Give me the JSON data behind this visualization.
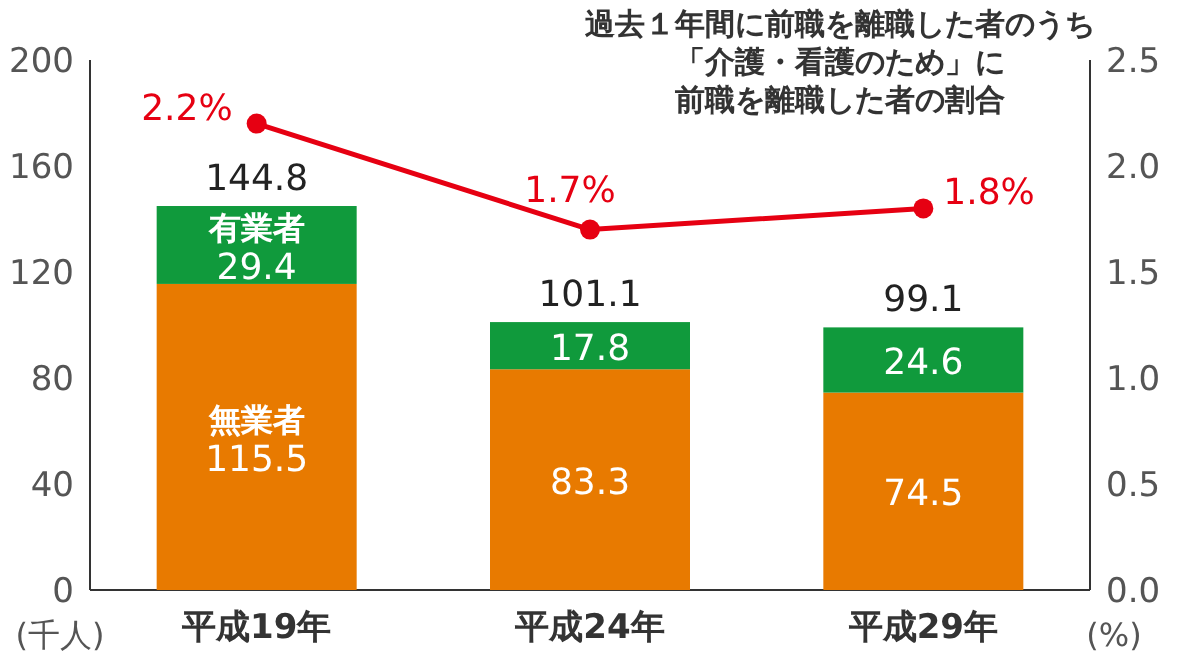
{
  "chart_data": {
    "type": "bar",
    "stacked": true,
    "categories": [
      "平成19年",
      "平成24年",
      "平成29年"
    ],
    "series": [
      {
        "name": "無業者",
        "color": "#e87a00",
        "values": [
          115.5,
          83.3,
          74.5
        ],
        "value_labels": [
          "115.5",
          "83.3",
          "74.5"
        ]
      },
      {
        "name": "有業者",
        "color": "#109a3c",
        "values": [
          29.4,
          17.8,
          24.6
        ],
        "value_labels": [
          "29.4",
          "17.8",
          "24.6"
        ]
      },
      {
        "type": "line",
        "axis": "y2",
        "color": "#e60012",
        "marker": "circle",
        "values": [
          2.2,
          1.7,
          1.8
        ],
        "value_labels": [
          "2.2%",
          "1.7%",
          "1.8%"
        ]
      }
    ],
    "annotations": [
      "過去１年間に前職を離職した者のうち",
      "「介護・看護のため」に",
      "前職を離職した者の割合"
    ],
    "totals": [
      "144.8",
      "101.1",
      "99.1"
    ],
    "ylabel": "(千人)",
    "y2label": "(%)",
    "ylim": [
      0,
      200
    ],
    "yticks": [
      0,
      40,
      80,
      120,
      160,
      200
    ],
    "y2lim": [
      0,
      2.5
    ],
    "y2ticks": [
      {
        "value": 0,
        "label": "0.0"
      },
      0.5,
      {
        "value": 1,
        "label": "1.0"
      },
      1.5,
      {
        "value": 2,
        "label": "2.0"
      },
      2.5
    ],
    "legend": false
  }
}
